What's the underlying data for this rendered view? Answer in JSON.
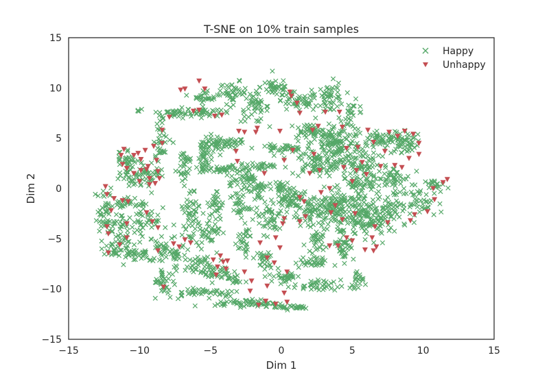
{
  "chart_data": {
    "type": "scatter",
    "title": "T-SNE on 10% train samples",
    "xlabel": "Dim 1",
    "ylabel": "Dim 2",
    "xlim": [
      -15,
      15
    ],
    "ylim": [
      -15,
      15
    ],
    "xticks": [
      -15,
      -10,
      -5,
      0,
      5,
      10,
      15
    ],
    "yticks": [
      -15,
      -10,
      -5,
      0,
      5,
      10,
      15
    ],
    "grid": false,
    "legend_position": "top-right",
    "series": [
      {
        "name": "Happy",
        "marker": "x",
        "color": "#55a868",
        "clusters": [
          {
            "cx": -4.8,
            "cy": 4.3,
            "rx": 0.7,
            "ry": 0.9,
            "n": 40
          },
          {
            "cx": -3.6,
            "cy": 4.5,
            "rx": 0.8,
            "ry": 0.4,
            "n": 30
          },
          {
            "cx": -5.5,
            "cy": 2.8,
            "rx": 0.3,
            "ry": 1.2,
            "n": 30
          },
          {
            "cx": -4.6,
            "cy": 1.9,
            "rx": 1.0,
            "ry": 0.3,
            "n": 30
          },
          {
            "cx": -6.8,
            "cy": 2.5,
            "rx": 0.5,
            "ry": 1.5,
            "n": 30
          },
          {
            "cx": -7.6,
            "cy": 7.5,
            "rx": 1.2,
            "ry": 0.4,
            "n": 40
          },
          {
            "cx": -5.5,
            "cy": 7.6,
            "rx": 1.0,
            "ry": 0.4,
            "n": 30
          },
          {
            "cx": -5.3,
            "cy": 9.2,
            "rx": 0.8,
            "ry": 0.5,
            "n": 25
          },
          {
            "cx": -3.4,
            "cy": 9.5,
            "rx": 0.8,
            "ry": 0.9,
            "n": 40
          },
          {
            "cx": -1.9,
            "cy": 8.0,
            "rx": 0.8,
            "ry": 1.2,
            "n": 45
          },
          {
            "cx": -0.4,
            "cy": 10.1,
            "rx": 0.9,
            "ry": 0.8,
            "n": 40
          },
          {
            "cx": 1.1,
            "cy": 8.6,
            "rx": 1.3,
            "ry": 0.8,
            "n": 50
          },
          {
            "cx": 3.5,
            "cy": 9.0,
            "rx": 0.8,
            "ry": 1.3,
            "n": 50
          },
          {
            "cx": 5.0,
            "cy": 7.2,
            "rx": 0.7,
            "ry": 1.2,
            "n": 30
          },
          {
            "cx": 0.0,
            "cy": 4.0,
            "rx": 1.5,
            "ry": 0.3,
            "n": 40
          },
          {
            "cx": 1.9,
            "cy": 5.7,
            "rx": 1.2,
            "ry": 0.6,
            "n": 40
          },
          {
            "cx": 3.8,
            "cy": 4.5,
            "rx": 1.5,
            "ry": 1.5,
            "n": 120
          },
          {
            "cx": 2.4,
            "cy": 2.4,
            "rx": 1.4,
            "ry": 1.0,
            "n": 70
          },
          {
            "cx": 5.4,
            "cy": 2.3,
            "rx": 1.3,
            "ry": 1.5,
            "n": 90
          },
          {
            "cx": 7.3,
            "cy": 4.8,
            "rx": 1.4,
            "ry": 0.8,
            "n": 60
          },
          {
            "cx": 8.8,
            "cy": 4.6,
            "rx": 0.9,
            "ry": 0.8,
            "n": 40
          },
          {
            "cx": 7.8,
            "cy": 1.0,
            "rx": 1.1,
            "ry": 1.0,
            "n": 50
          },
          {
            "cx": 9.8,
            "cy": -1.5,
            "rx": 1.4,
            "ry": 1.2,
            "n": 45
          },
          {
            "cx": 11.0,
            "cy": 0.3,
            "rx": 0.7,
            "ry": 0.5,
            "n": 20
          },
          {
            "cx": 4.2,
            "cy": -2.0,
            "rx": 1.8,
            "ry": 1.6,
            "n": 160
          },
          {
            "cx": 6.2,
            "cy": -3.3,
            "rx": 1.4,
            "ry": 1.4,
            "n": 90
          },
          {
            "cx": 2.0,
            "cy": -2.2,
            "rx": 1.2,
            "ry": 1.2,
            "n": 60
          },
          {
            "cx": 0.7,
            "cy": -0.8,
            "rx": 0.8,
            "ry": 1.0,
            "n": 40
          },
          {
            "cx": 4.4,
            "cy": -5.5,
            "rx": 0.6,
            "ry": 1.4,
            "n": 40
          },
          {
            "cx": 2.3,
            "cy": -5.6,
            "rx": 0.5,
            "ry": 1.4,
            "n": 30
          },
          {
            "cx": 2.1,
            "cy": -7.4,
            "rx": 1.0,
            "ry": 0.4,
            "n": 30
          },
          {
            "cx": 5.3,
            "cy": -9.3,
            "rx": 0.4,
            "ry": 1.0,
            "n": 20
          },
          {
            "cx": 2.5,
            "cy": -9.7,
            "rx": 1.4,
            "ry": 0.5,
            "n": 40
          },
          {
            "cx": 0.3,
            "cy": -8.7,
            "rx": 1.0,
            "ry": 0.6,
            "n": 30
          },
          {
            "cx": -2.5,
            "cy": -11.4,
            "rx": 1.8,
            "ry": 0.3,
            "n": 60
          },
          {
            "cx": 0.8,
            "cy": -11.8,
            "rx": 1.2,
            "ry": 0.2,
            "n": 30
          },
          {
            "cx": -5.5,
            "cy": -10.3,
            "rx": 2.3,
            "ry": 0.4,
            "n": 50
          },
          {
            "cx": -8.3,
            "cy": -9.4,
            "rx": 0.6,
            "ry": 1.2,
            "n": 30
          },
          {
            "cx": -8.5,
            "cy": -6.0,
            "rx": 0.7,
            "ry": 1.2,
            "n": 30
          },
          {
            "cx": -9.5,
            "cy": -3.0,
            "rx": 0.8,
            "ry": 1.8,
            "n": 40
          },
          {
            "cx": -7.4,
            "cy": -6.3,
            "rx": 0.6,
            "ry": 1.8,
            "n": 30
          },
          {
            "cx": -6.4,
            "cy": -2.5,
            "rx": 0.7,
            "ry": 2.5,
            "n": 50
          },
          {
            "cx": -5.2,
            "cy": -4.4,
            "rx": 0.7,
            "ry": 0.9,
            "n": 35
          },
          {
            "cx": -5.6,
            "cy": -7.7,
            "rx": 1.1,
            "ry": 0.8,
            "n": 40
          },
          {
            "cx": -4.6,
            "cy": -1.7,
            "rx": 0.4,
            "ry": 1.5,
            "n": 30
          },
          {
            "cx": -3.0,
            "cy": -1.6,
            "rx": 0.6,
            "ry": 1.2,
            "n": 30
          },
          {
            "cx": -3.2,
            "cy": 1.1,
            "rx": 0.7,
            "ry": 1.2,
            "n": 30
          },
          {
            "cx": -2.3,
            "cy": 1.2,
            "rx": 0.4,
            "ry": 0.6,
            "n": 20
          },
          {
            "cx": -1.4,
            "cy": 2.2,
            "rx": 1.0,
            "ry": 0.3,
            "n": 25
          },
          {
            "cx": -1.7,
            "cy": -0.1,
            "rx": 0.6,
            "ry": 1.3,
            "n": 35
          },
          {
            "cx": -0.1,
            "cy": -0.4,
            "rx": 0.5,
            "ry": 1.4,
            "n": 30
          },
          {
            "cx": -0.8,
            "cy": -3.0,
            "rx": 0.9,
            "ry": 1.3,
            "n": 40
          },
          {
            "cx": -2.7,
            "cy": -5.2,
            "rx": 0.5,
            "ry": 1.5,
            "n": 30
          },
          {
            "cx": -1.3,
            "cy": -7.2,
            "rx": 0.6,
            "ry": 0.7,
            "n": 25
          },
          {
            "cx": -3.2,
            "cy": -9.0,
            "rx": 0.5,
            "ry": 0.6,
            "n": 15
          },
          {
            "cx": -4.6,
            "cy": -8.3,
            "rx": 0.9,
            "ry": 0.8,
            "n": 30
          },
          {
            "cx": -10.9,
            "cy": 3.0,
            "rx": 0.6,
            "ry": 0.9,
            "n": 30
          },
          {
            "cx": -10.6,
            "cy": 1.2,
            "rx": 0.7,
            "ry": 0.8,
            "n": 30
          },
          {
            "cx": -9.2,
            "cy": 1.6,
            "rx": 0.8,
            "ry": 1.1,
            "n": 40
          },
          {
            "cx": -8.4,
            "cy": 4.8,
            "rx": 0.5,
            "ry": 1.5,
            "n": 30
          },
          {
            "cx": -10.0,
            "cy": 7.9,
            "rx": 0.2,
            "ry": 0.2,
            "n": 3
          },
          {
            "cx": -12.4,
            "cy": -2.5,
            "rx": 0.6,
            "ry": 2.3,
            "n": 50
          },
          {
            "cx": -11.4,
            "cy": -4.3,
            "rx": 0.7,
            "ry": 1.8,
            "n": 50
          },
          {
            "cx": -10.3,
            "cy": -6.5,
            "rx": 0.8,
            "ry": 0.5,
            "n": 30
          },
          {
            "cx": -11.8,
            "cy": -6.2,
            "rx": 0.6,
            "ry": 0.6,
            "n": 20
          },
          {
            "cx": -10.7,
            "cy": -1.5,
            "rx": 0.8,
            "ry": 0.5,
            "n": 25
          },
          {
            "cx": 7.6,
            "cy": -2.0,
            "rx": 1.0,
            "ry": 1.2,
            "n": 40
          },
          {
            "cx": 5.6,
            "cy": 0.2,
            "rx": 0.9,
            "ry": 0.6,
            "n": 35
          }
        ]
      },
      {
        "name": "Unhappy",
        "marker": "v",
        "color": "#c44e52",
        "points": [
          [
            -7.1,
            9.8
          ],
          [
            -6.8,
            9.9
          ],
          [
            -5.8,
            10.7
          ],
          [
            -5.4,
            9.9
          ],
          [
            -6.2,
            7.7
          ],
          [
            -5.8,
            7.8
          ],
          [
            -4.7,
            7.2
          ],
          [
            -4.2,
            7.3
          ],
          [
            -8.4,
            5.8
          ],
          [
            -8.4,
            4.5
          ],
          [
            -7.9,
            7.1
          ],
          [
            -3.0,
            5.7
          ],
          [
            -2.6,
            5.6
          ],
          [
            -1.7,
            6.0
          ],
          [
            -1.8,
            5.6
          ],
          [
            -3.2,
            3.7
          ],
          [
            -3.1,
            2.7
          ],
          [
            -0.1,
            5.7
          ],
          [
            0.6,
            9.6
          ],
          [
            0.7,
            9.2
          ],
          [
            1.1,
            8.5
          ],
          [
            1.3,
            7.5
          ],
          [
            2.2,
            5.8
          ],
          [
            2.6,
            6.2
          ],
          [
            3.1,
            7.6
          ],
          [
            4.1,
            7.6
          ],
          [
            4.3,
            6.1
          ],
          [
            4.6,
            4.0
          ],
          [
            5.4,
            4.1
          ],
          [
            5.7,
            2.6
          ],
          [
            5.3,
            1.8
          ],
          [
            4.4,
            2.1
          ],
          [
            3.4,
            0.0
          ],
          [
            2.7,
            1.8
          ],
          [
            2.0,
            1.5
          ],
          [
            2.3,
            3.4
          ],
          [
            6.5,
            4.6
          ],
          [
            6.1,
            5.8
          ],
          [
            7.3,
            3.7
          ],
          [
            7.6,
            5.6
          ],
          [
            8.2,
            5.2
          ],
          [
            8.7,
            5.7
          ],
          [
            9.3,
            5.4
          ],
          [
            9.7,
            4.5
          ],
          [
            9.7,
            3.4
          ],
          [
            9.0,
            3.0
          ],
          [
            8.5,
            2.1
          ],
          [
            8.0,
            2.3
          ],
          [
            7.0,
            2.2
          ],
          [
            10.7,
            0.0
          ],
          [
            11.4,
            0.6
          ],
          [
            11.7,
            0.9
          ],
          [
            10.8,
            -1.1
          ],
          [
            10.3,
            -2.3
          ],
          [
            9.4,
            -2.6
          ],
          [
            9.1,
            -3.2
          ],
          [
            7.5,
            -3.4
          ],
          [
            6.6,
            -3.8
          ],
          [
            6.4,
            -4.9
          ],
          [
            6.5,
            -6.2
          ],
          [
            6.7,
            -5.8
          ],
          [
            5.9,
            -6.1
          ],
          [
            5.0,
            -5.2
          ],
          [
            4.6,
            -4.9
          ],
          [
            4.0,
            -5.7
          ],
          [
            3.4,
            -5.7
          ],
          [
            3.5,
            -2.4
          ],
          [
            3.8,
            -1.7
          ],
          [
            4.3,
            -3.1
          ],
          [
            5.2,
            -2.5
          ],
          [
            1.3,
            -0.9
          ],
          [
            1.6,
            -1.3
          ],
          [
            2.8,
            -0.4
          ],
          [
            0.2,
            -3.0
          ],
          [
            0.1,
            -3.5
          ],
          [
            -0.4,
            -4.9
          ],
          [
            -0.1,
            -5.9
          ],
          [
            -0.5,
            -7.4
          ],
          [
            -1.0,
            -6.9
          ],
          [
            -1.5,
            -5.4
          ],
          [
            -2.1,
            -9.2
          ],
          [
            -2.6,
            -8.3
          ],
          [
            -2.2,
            -10.2
          ],
          [
            -1.6,
            -11.6
          ],
          [
            -1.1,
            -11.2
          ],
          [
            -0.4,
            -11.5
          ],
          [
            0.4,
            -11.3
          ],
          [
            0.4,
            -8.3
          ],
          [
            0.2,
            -10.4
          ],
          [
            -1.0,
            -9.7
          ],
          [
            -4.8,
            -7.1
          ],
          [
            -4.5,
            -7.8
          ],
          [
            -4.6,
            -8.6
          ],
          [
            -4.1,
            -7.3
          ],
          [
            -3.8,
            -7.2
          ],
          [
            -3.9,
            -8.0
          ],
          [
            -4.3,
            -6.7
          ],
          [
            -6.4,
            -5.4
          ],
          [
            -6.8,
            -5.1
          ],
          [
            -7.6,
            -5.5
          ],
          [
            -7.2,
            -5.8
          ],
          [
            -8.3,
            -9.8
          ],
          [
            -8.7,
            -6.2
          ],
          [
            -8.7,
            -3.9
          ],
          [
            -9.1,
            -3.3
          ],
          [
            -9.5,
            -2.4
          ],
          [
            -10.8,
            -1.3
          ],
          [
            -11.2,
            -1.2
          ],
          [
            -11.8,
            -1.0
          ],
          [
            -12.0,
            -2.2
          ],
          [
            -12.3,
            -3.8
          ],
          [
            -12.2,
            -4.5
          ],
          [
            -10.9,
            -3.5
          ],
          [
            -10.9,
            -4.9
          ],
          [
            -11.4,
            -5.6
          ],
          [
            -12.2,
            -6.4
          ],
          [
            -12.3,
            -0.6
          ],
          [
            -12.4,
            0.2
          ],
          [
            -11.3,
            3.3
          ],
          [
            -11.2,
            2.4
          ],
          [
            -10.9,
            2.0
          ],
          [
            -10.4,
            1.5
          ],
          [
            -10.0,
            0.7
          ],
          [
            -9.9,
            1.8
          ],
          [
            -9.5,
            1.9
          ],
          [
            -9.3,
            1.0
          ],
          [
            -9.3,
            0.4
          ],
          [
            -9.9,
            2.9
          ],
          [
            -10.1,
            3.5
          ],
          [
            -9.6,
            3.8
          ],
          [
            -9.4,
            2.2
          ],
          [
            -8.8,
            2.8
          ],
          [
            -8.7,
            1.7
          ],
          [
            -11.1,
            3.9
          ],
          [
            -10.4,
            3.3
          ],
          [
            -9.0,
            4.2
          ],
          [
            -8.6,
            1.0
          ],
          [
            -8.9,
            0.5
          ],
          [
            0.8,
            3.8
          ],
          [
            0.2,
            2.8
          ],
          [
            -1.2,
            1.5
          ],
          [
            1.3,
            -3.3
          ],
          [
            1.7,
            -2.8
          ],
          [
            5.0,
            0.7
          ],
          [
            6.0,
            1.4
          ]
        ]
      }
    ]
  }
}
